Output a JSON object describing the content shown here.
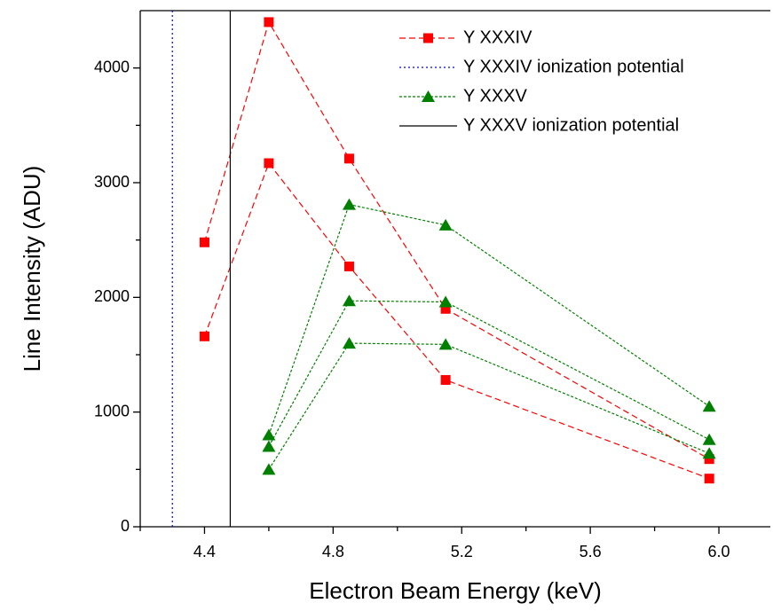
{
  "chart_data": {
    "type": "line",
    "x_label": "Electron Beam Energy (keV)",
    "y_label": "Line Intensity (ADU)",
    "xlim": [
      4.2,
      6.16
    ],
    "ylim": [
      0,
      4500
    ],
    "xticks": [
      4.4,
      4.8,
      5.2,
      5.6,
      {
        "value": 6,
        "label": "6.0"
      }
    ],
    "yticks": [
      0,
      1000,
      2000,
      3000,
      4000
    ],
    "xminor": [
      4.2,
      4.6,
      5.0,
      5.4,
      5.8
    ],
    "yminor": [
      500,
      1500,
      2500,
      3500
    ],
    "legend": "upper right",
    "series": [
      {
        "kind": "line",
        "name": "Y XXXIV",
        "color": "#ff0000",
        "marker": "square",
        "dash": "dashed",
        "x": [
          4.4,
          4.6,
          4.85,
          5.15,
          5.97
        ],
        "runs": [
          [
            2480,
            4400,
            3210,
            1900,
            590
          ],
          [
            1660,
            3170,
            2270,
            1280,
            420
          ]
        ]
      },
      {
        "kind": "vline",
        "name": "Y XXXIV ionization potential",
        "color": "#0000ff",
        "dash": "dotted",
        "x": 4.3
      },
      {
        "kind": "line",
        "name": "Y XXXV",
        "color": "#008000",
        "marker": "triangle",
        "dash": "short",
        "x": [
          4.6,
          4.85,
          5.15,
          5.97
        ],
        "runs": [
          [
            800,
            2810,
            2630,
            1050
          ],
          [
            700,
            1970,
            1960,
            760
          ],
          [
            500,
            1600,
            1590,
            640
          ]
        ]
      },
      {
        "kind": "vline",
        "name": "Y XXXV ionization potential",
        "color": "#000000",
        "dash": "solid",
        "x": 4.48
      }
    ]
  }
}
